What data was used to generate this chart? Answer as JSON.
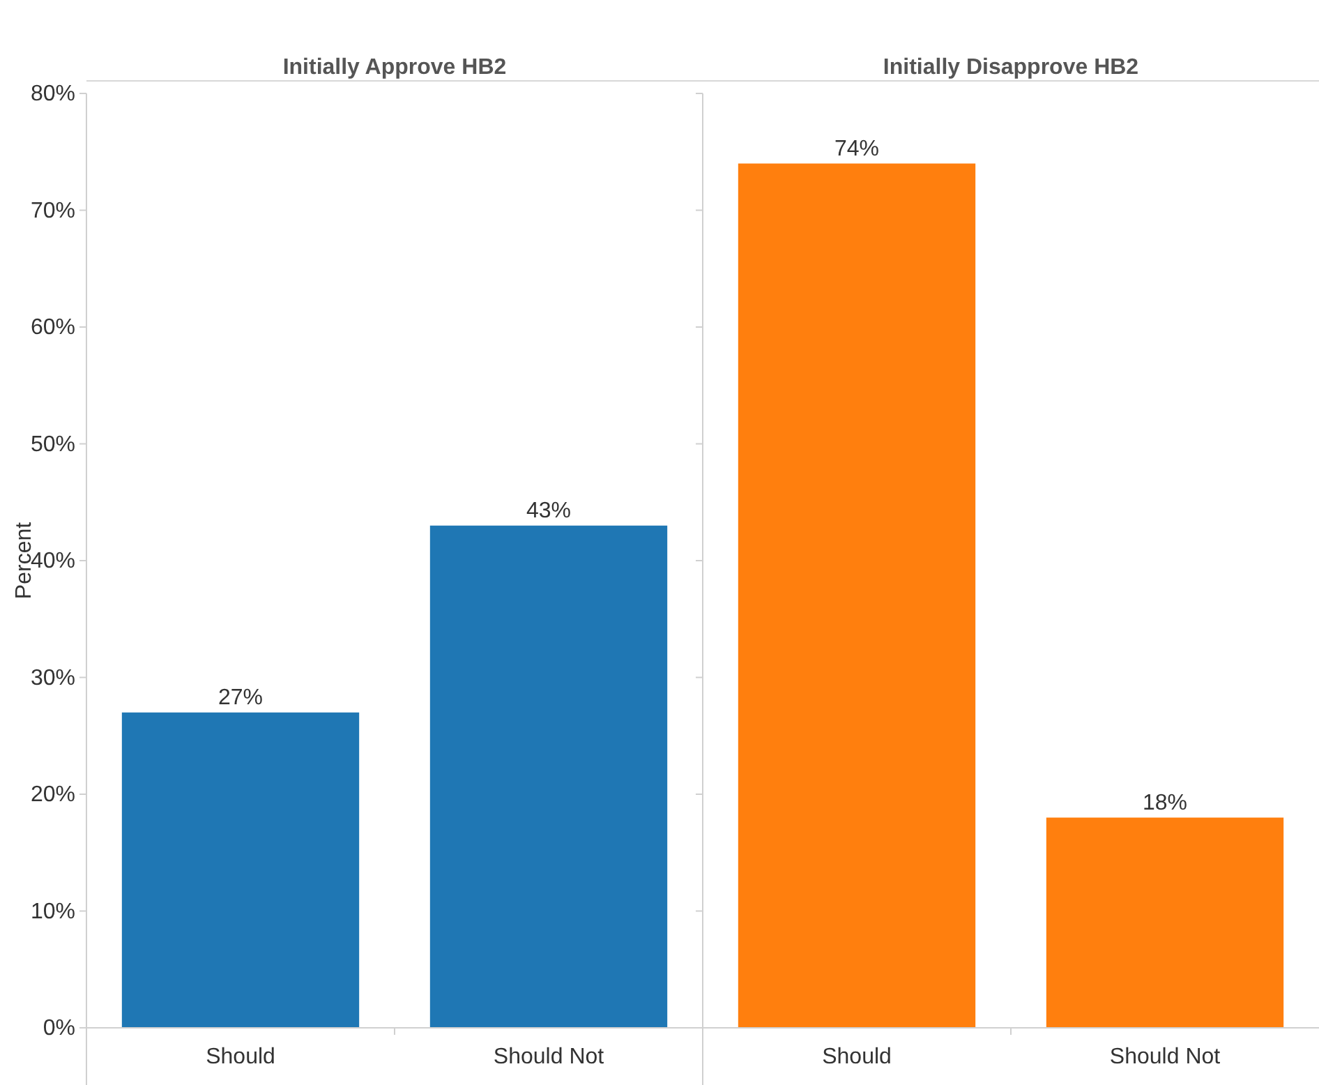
{
  "chart_data": [
    {
      "type": "bar",
      "title": "Initially Approve HB2",
      "ylabel": "Percent",
      "categories": [
        "Should",
        "Should Not"
      ],
      "values": [
        27,
        43
      ],
      "color": "#1f77b4",
      "data_labels": true,
      "value_labels": [
        "27%",
        "43%"
      ],
      "ylim": [
        0,
        80
      ],
      "yticks": [
        {
          "value": 0,
          "label": "0%"
        },
        {
          "value": 10,
          "label": "10%"
        },
        {
          "value": 20,
          "label": "20%"
        },
        {
          "value": 30,
          "label": "30%"
        },
        {
          "value": 40,
          "label": "40%"
        },
        {
          "value": 50,
          "label": "50%"
        },
        {
          "value": 60,
          "label": "60%"
        },
        {
          "value": 70,
          "label": "70%"
        },
        {
          "value": 80,
          "label": "80%"
        }
      ]
    },
    {
      "type": "bar",
      "title": "Initially Disapprove HB2",
      "categories": [
        "Should",
        "Should Not"
      ],
      "values": [
        74,
        18
      ],
      "color": "#ff7f0e",
      "data_labels": true,
      "value_labels": [
        "74%",
        "18%"
      ],
      "ylim": [
        0,
        80
      ],
      "yticks": [
        {
          "value": 0,
          "label": null
        },
        {
          "value": 10,
          "label": null
        },
        {
          "value": 20,
          "label": null
        },
        {
          "value": 30,
          "label": null
        },
        {
          "value": 40,
          "label": null
        },
        {
          "value": 50,
          "label": null
        },
        {
          "value": 60,
          "label": null
        },
        {
          "value": 70,
          "label": null
        },
        {
          "value": 80,
          "label": null
        }
      ],
      "tick_labels": "x"
    }
  ]
}
